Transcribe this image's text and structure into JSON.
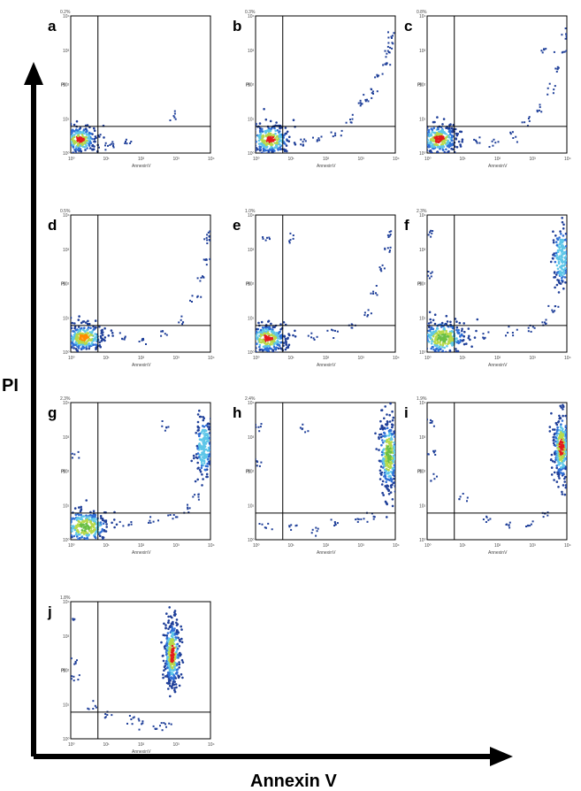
{
  "figure": {
    "y_axis_label": "PI",
    "x_axis_label": "Annexin V"
  },
  "chart_data": [
    {
      "type": "scatter",
      "panel": "a",
      "corner_label": "0.2%",
      "xlabel": "AnnexinV",
      "ylabel": "PI",
      "x_scale": "log",
      "y_scale": "log",
      "xlim": [
        1,
        10000
      ],
      "ylim": [
        1,
        10000
      ],
      "xticks": [
        "10⁰",
        "10¹",
        "10²",
        "10³",
        "10⁴"
      ],
      "yticks": [
        "10⁰",
        "10¹",
        "10²",
        "10³",
        "10⁴"
      ],
      "gates": {
        "x": 6,
        "y": 6
      },
      "clusters": [
        {
          "x": 1.8,
          "y": 2.5,
          "spread": [
            0.25,
            0.2
          ],
          "n": 260,
          "peak": "red"
        }
      ],
      "scatter": [
        [
          8,
          2
        ],
        [
          15,
          1.8
        ],
        [
          40,
          2.2
        ],
        [
          900,
          12
        ]
      ]
    },
    {
      "type": "scatter",
      "panel": "b",
      "corner_label": "0.3%",
      "xlabel": "AnnexinV",
      "ylabel": "PI",
      "x_scale": "log",
      "y_scale": "log",
      "xlim": [
        1,
        10000
      ],
      "ylim": [
        1,
        10000
      ],
      "gates": {
        "x": 6,
        "y": 6
      },
      "clusters": [
        {
          "x": 2.6,
          "y": 2.5,
          "spread": [
            0.3,
            0.22
          ],
          "n": 300,
          "peak": "red"
        }
      ],
      "scatter": [
        [
          20,
          2.5
        ],
        [
          60,
          3
        ],
        [
          200,
          4
        ],
        [
          500,
          10
        ],
        [
          1000,
          30
        ],
        [
          3000,
          200
        ],
        [
          5000,
          400
        ],
        [
          7000,
          1500
        ],
        [
          8000,
          3000
        ],
        [
          2000,
          60
        ],
        [
          1500,
          40
        ],
        [
          6000,
          800
        ]
      ]
    },
    {
      "type": "scatter",
      "panel": "c",
      "corner_label": "0.8%",
      "xlabel": "AnnexinV",
      "ylabel": "PI",
      "x_scale": "log",
      "y_scale": "log",
      "xlim": [
        1,
        10000
      ],
      "ylim": [
        1,
        10000
      ],
      "gates": {
        "x": 6,
        "y": 6
      },
      "clusters": [
        {
          "x": 2.2,
          "y": 2.6,
          "spread": [
            0.28,
            0.22
          ],
          "n": 280,
          "peak": "red"
        }
      ],
      "scatter": [
        [
          25,
          2.5
        ],
        [
          80,
          2
        ],
        [
          300,
          3
        ],
        [
          700,
          9
        ],
        [
          1500,
          20
        ],
        [
          3000,
          80
        ],
        [
          5000,
          300
        ],
        [
          7000,
          1000
        ],
        [
          8500,
          3000
        ],
        [
          2000,
          1000
        ]
      ]
    },
    {
      "type": "scatter",
      "panel": "d",
      "corner_label": "0.5%",
      "xlabel": "AnnexinV",
      "ylabel": "PI",
      "x_scale": "log",
      "y_scale": "log",
      "xlim": [
        1,
        10000
      ],
      "ylim": [
        1,
        10000
      ],
      "gates": {
        "x": 6,
        "y": 6
      },
      "clusters": [
        {
          "x": 2.4,
          "y": 2.6,
          "spread": [
            0.3,
            0.2
          ],
          "n": 300,
          "peak": "orange"
        }
      ],
      "scatter": [
        [
          30,
          3
        ],
        [
          100,
          2.5
        ],
        [
          400,
          4
        ],
        [
          1500,
          8
        ],
        [
          3000,
          40
        ],
        [
          5000,
          150
        ],
        [
          7000,
          600
        ],
        [
          8000,
          2000
        ],
        [
          9000,
          3000
        ]
      ]
    },
    {
      "type": "scatter",
      "panel": "e",
      "corner_label": "1.0%",
      "xlabel": "AnnexinV",
      "ylabel": "PI",
      "x_scale": "log",
      "y_scale": "log",
      "xlim": [
        1,
        10000
      ],
      "ylim": [
        1,
        10000
      ],
      "gates": {
        "x": 6,
        "y": 6
      },
      "clusters": [
        {
          "x": 2.2,
          "y": 2.5,
          "spread": [
            0.28,
            0.22
          ],
          "n": 300,
          "peak": "red"
        }
      ],
      "scatter": [
        [
          2,
          2000
        ],
        [
          10,
          2000
        ],
        [
          40,
          3
        ],
        [
          150,
          4
        ],
        [
          500,
          6
        ],
        [
          1500,
          15
        ],
        [
          3000,
          60
        ],
        [
          4500,
          300
        ],
        [
          5500,
          1000
        ],
        [
          6000,
          3000
        ]
      ]
    },
    {
      "type": "scatter",
      "panel": "f",
      "corner_label": "2.3%",
      "xlabel": "AnnexinV",
      "ylabel": "PI",
      "x_scale": "log",
      "y_scale": "log",
      "xlim": [
        1,
        10000
      ],
      "ylim": [
        1,
        10000
      ],
      "gates": {
        "x": 6,
        "y": 6
      },
      "clusters": [
        {
          "x": 2.8,
          "y": 2.6,
          "spread": [
            0.35,
            0.25
          ],
          "n": 300,
          "peak": "green"
        },
        {
          "x": 7000,
          "y": 600,
          "spread": [
            0.12,
            0.45
          ],
          "n": 180,
          "peak": "cyan"
        }
      ],
      "scatter": [
        [
          40,
          3
        ],
        [
          200,
          4
        ],
        [
          800,
          5
        ],
        [
          2000,
          8
        ],
        [
          4000,
          20
        ],
        [
          1.2,
          200
        ],
        [
          1.2,
          3000
        ]
      ]
    },
    {
      "type": "scatter",
      "panel": "g",
      "corner_label": "2.3%",
      "xlabel": "AnnexinV",
      "ylabel": "PI",
      "x_scale": "log",
      "y_scale": "log",
      "xlim": [
        1,
        10000
      ],
      "ylim": [
        1,
        10000
      ],
      "gates": {
        "x": 6,
        "y": 6
      },
      "clusters": [
        {
          "x": 2.6,
          "y": 2.4,
          "spread": [
            0.35,
            0.25
          ],
          "n": 300,
          "peak": "green"
        },
        {
          "x": 6500,
          "y": 500,
          "spread": [
            0.12,
            0.45
          ],
          "n": 200,
          "peak": "cyan"
        }
      ],
      "scatter": [
        [
          40,
          3
        ],
        [
          200,
          4
        ],
        [
          800,
          5
        ],
        [
          2000,
          9
        ],
        [
          4000,
          20
        ],
        [
          1.2,
          300
        ],
        [
          500,
          2000
        ]
      ]
    },
    {
      "type": "scatter",
      "panel": "h",
      "corner_label": "2.4%",
      "xlabel": "AnnexinV",
      "ylabel": "PI",
      "x_scale": "log",
      "y_scale": "log",
      "xlim": [
        1,
        10000
      ],
      "ylim": [
        1,
        10000
      ],
      "gates": {
        "x": 6,
        "y": 6
      },
      "clusters": [
        {
          "x": 6500,
          "y": 300,
          "spread": [
            0.14,
            0.55
          ],
          "n": 300,
          "peak": "green"
        }
      ],
      "scatter": [
        [
          2,
          3
        ],
        [
          10,
          2.5
        ],
        [
          50,
          2
        ],
        [
          200,
          3
        ],
        [
          800,
          4
        ],
        [
          2000,
          5
        ],
        [
          1.2,
          200
        ],
        [
          1.2,
          2000
        ],
        [
          20,
          2000
        ]
      ]
    },
    {
      "type": "scatter",
      "panel": "i",
      "corner_label": "1.9%",
      "xlabel": "AnnexinV",
      "ylabel": "PI",
      "x_scale": "log",
      "y_scale": "log",
      "xlim": [
        1,
        10000
      ],
      "ylim": [
        1,
        10000
      ],
      "gates": {
        "x": 6,
        "y": 6
      },
      "clusters": [
        {
          "x": 7000,
          "y": 500,
          "spread": [
            0.12,
            0.5
          ],
          "n": 320,
          "peak": "red"
        }
      ],
      "scatter": [
        [
          50,
          4
        ],
        [
          200,
          3
        ],
        [
          800,
          3
        ],
        [
          2000,
          6
        ],
        [
          1.2,
          60
        ],
        [
          1.2,
          400
        ],
        [
          1.2,
          3000
        ],
        [
          10,
          20
        ]
      ]
    },
    {
      "type": "scatter",
      "panel": "j",
      "corner_label": "1.8%",
      "xlabel": "AnnexinV",
      "ylabel": "PI",
      "x_scale": "log",
      "y_scale": "log",
      "xlim": [
        1,
        10000
      ],
      "ylim": [
        1,
        10000
      ],
      "gates": {
        "x": 6,
        "y": 6
      },
      "clusters": [
        {
          "x": 800,
          "y": 300,
          "spread": [
            0.12,
            0.5
          ],
          "n": 340,
          "peak": "red"
        }
      ],
      "scatter": [
        [
          50,
          4
        ],
        [
          100,
          3
        ],
        [
          300,
          2
        ],
        [
          500,
          3
        ],
        [
          1.2,
          60
        ],
        [
          1.2,
          200
        ],
        [
          1.2,
          3000
        ],
        [
          4,
          8
        ],
        [
          10,
          5
        ]
      ]
    }
  ]
}
